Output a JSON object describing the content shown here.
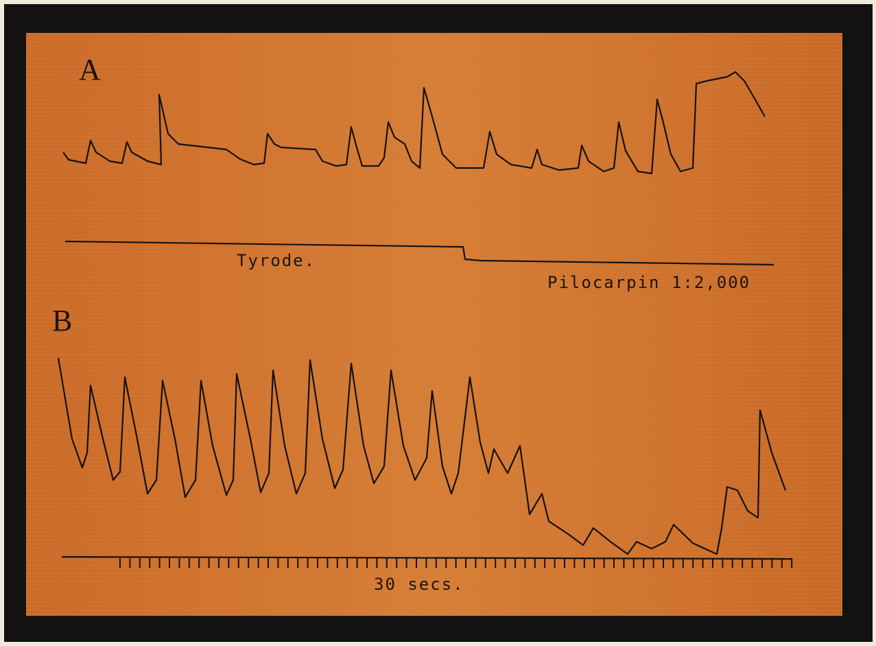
{
  "panels": [
    {
      "label": "A"
    },
    {
      "label": "B"
    }
  ],
  "signal_line": {
    "left_label": "Tyrode.",
    "right_label": "Pilocarpin 1:2,000"
  },
  "time_scale": {
    "label": "30 secs."
  }
}
